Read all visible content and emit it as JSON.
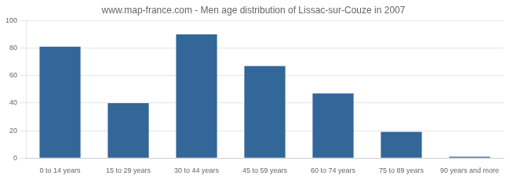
{
  "chart_data": {
    "type": "bar",
    "title": "www.map-france.com - Men age distribution of Lissac-sur-Couze in 2007",
    "categories": [
      "0 to 14 years",
      "15 to 29 years",
      "30 to 44 years",
      "45 to 59 years",
      "60 to 74 years",
      "75 to 89 years",
      "90 years and more"
    ],
    "values": [
      81,
      40,
      90,
      67,
      47,
      19,
      1
    ],
    "color": "#336699",
    "ylim": [
      0,
      100
    ],
    "yticks": [
      0,
      20,
      40,
      60,
      80,
      100
    ],
    "grid": true
  }
}
